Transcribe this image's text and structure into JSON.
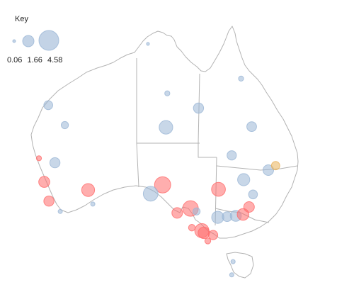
{
  "legend": {
    "title": "Key",
    "values": [
      "0.06",
      "1.66",
      "4.58"
    ]
  },
  "colors": {
    "blue": "#9bb6d6",
    "red": "#ff6b6b",
    "orange": "#e9b25a",
    "border": "#b3b3b3"
  },
  "chart_data": {
    "type": "scatter",
    "note_units": "bubble size = value shown in key",
    "points": [
      {
        "lon": 116.0,
        "lat": -20.6,
        "value": 0.9,
        "group": "blue"
      },
      {
        "lon": 118.5,
        "lat": -23.3,
        "value": 0.6,
        "group": "blue"
      },
      {
        "lon": 114.6,
        "lat": -27.8,
        "value": 0.3,
        "group": "red"
      },
      {
        "lon": 117.0,
        "lat": -28.4,
        "value": 1.2,
        "group": "blue"
      },
      {
        "lon": 115.4,
        "lat": -31.0,
        "value": 1.4,
        "group": "red"
      },
      {
        "lon": 116.1,
        "lat": -33.6,
        "value": 1.2,
        "group": "red"
      },
      {
        "lon": 117.8,
        "lat": -35.0,
        "value": 0.2,
        "group": "blue"
      },
      {
        "lon": 122.0,
        "lat": -32.1,
        "value": 1.9,
        "group": "red"
      },
      {
        "lon": 122.7,
        "lat": -34.0,
        "value": 0.2,
        "group": "blue"
      },
      {
        "lon": 131.0,
        "lat": -12.3,
        "value": 0.1,
        "group": "blue"
      },
      {
        "lon": 133.9,
        "lat": -19.0,
        "value": 0.3,
        "group": "blue"
      },
      {
        "lon": 133.7,
        "lat": -23.6,
        "value": 2.1,
        "group": "blue"
      },
      {
        "lon": 138.6,
        "lat": -21.0,
        "value": 1.2,
        "group": "blue"
      },
      {
        "lon": 145.0,
        "lat": -17.0,
        "value": 0.3,
        "group": "blue"
      },
      {
        "lon": 146.6,
        "lat": -23.5,
        "value": 1.1,
        "group": "blue"
      },
      {
        "lon": 143.6,
        "lat": -27.4,
        "value": 1.0,
        "group": "blue"
      },
      {
        "lon": 149.1,
        "lat": -29.4,
        "value": 1.3,
        "group": "blue"
      },
      {
        "lon": 150.2,
        "lat": -28.8,
        "value": 0.8,
        "group": "orange"
      },
      {
        "lon": 145.4,
        "lat": -30.7,
        "value": 1.7,
        "group": "blue"
      },
      {
        "lon": 141.6,
        "lat": -32.0,
        "value": 2.2,
        "group": "red"
      },
      {
        "lon": 133.2,
        "lat": -31.4,
        "value": 3.0,
        "group": "red"
      },
      {
        "lon": 131.4,
        "lat": -32.6,
        "value": 2.5,
        "group": "blue"
      },
      {
        "lon": 135.4,
        "lat": -35.2,
        "value": 1.3,
        "group": "red"
      },
      {
        "lon": 137.4,
        "lat": -34.6,
        "value": 2.8,
        "group": "red"
      },
      {
        "lon": 138.3,
        "lat": -35.0,
        "value": 0.6,
        "group": "blue"
      },
      {
        "lon": 141.5,
        "lat": -35.8,
        "value": 1.7,
        "group": "blue"
      },
      {
        "lon": 142.9,
        "lat": -35.7,
        "value": 1.1,
        "group": "blue"
      },
      {
        "lon": 144.2,
        "lat": -35.6,
        "value": 1.4,
        "group": "blue"
      },
      {
        "lon": 145.3,
        "lat": -35.4,
        "value": 1.6,
        "group": "red"
      },
      {
        "lon": 146.2,
        "lat": -34.4,
        "value": 1.3,
        "group": "red"
      },
      {
        "lon": 146.8,
        "lat": -32.7,
        "value": 0.9,
        "group": "blue"
      },
      {
        "lon": 137.6,
        "lat": -37.2,
        "value": 0.5,
        "group": "red"
      },
      {
        "lon": 139.1,
        "lat": -37.6,
        "value": 2.3,
        "group": "red"
      },
      {
        "lon": 139.4,
        "lat": -37.9,
        "value": 1.5,
        "group": "red"
      },
      {
        "lon": 140.8,
        "lat": -38.2,
        "value": 1.0,
        "group": "red"
      },
      {
        "lon": 140.0,
        "lat": -39.0,
        "value": 0.4,
        "group": "red"
      },
      {
        "lon": 143.8,
        "lat": -41.8,
        "value": 0.2,
        "group": "blue"
      },
      {
        "lon": 143.6,
        "lat": -43.6,
        "value": 0.2,
        "group": "blue"
      }
    ]
  }
}
